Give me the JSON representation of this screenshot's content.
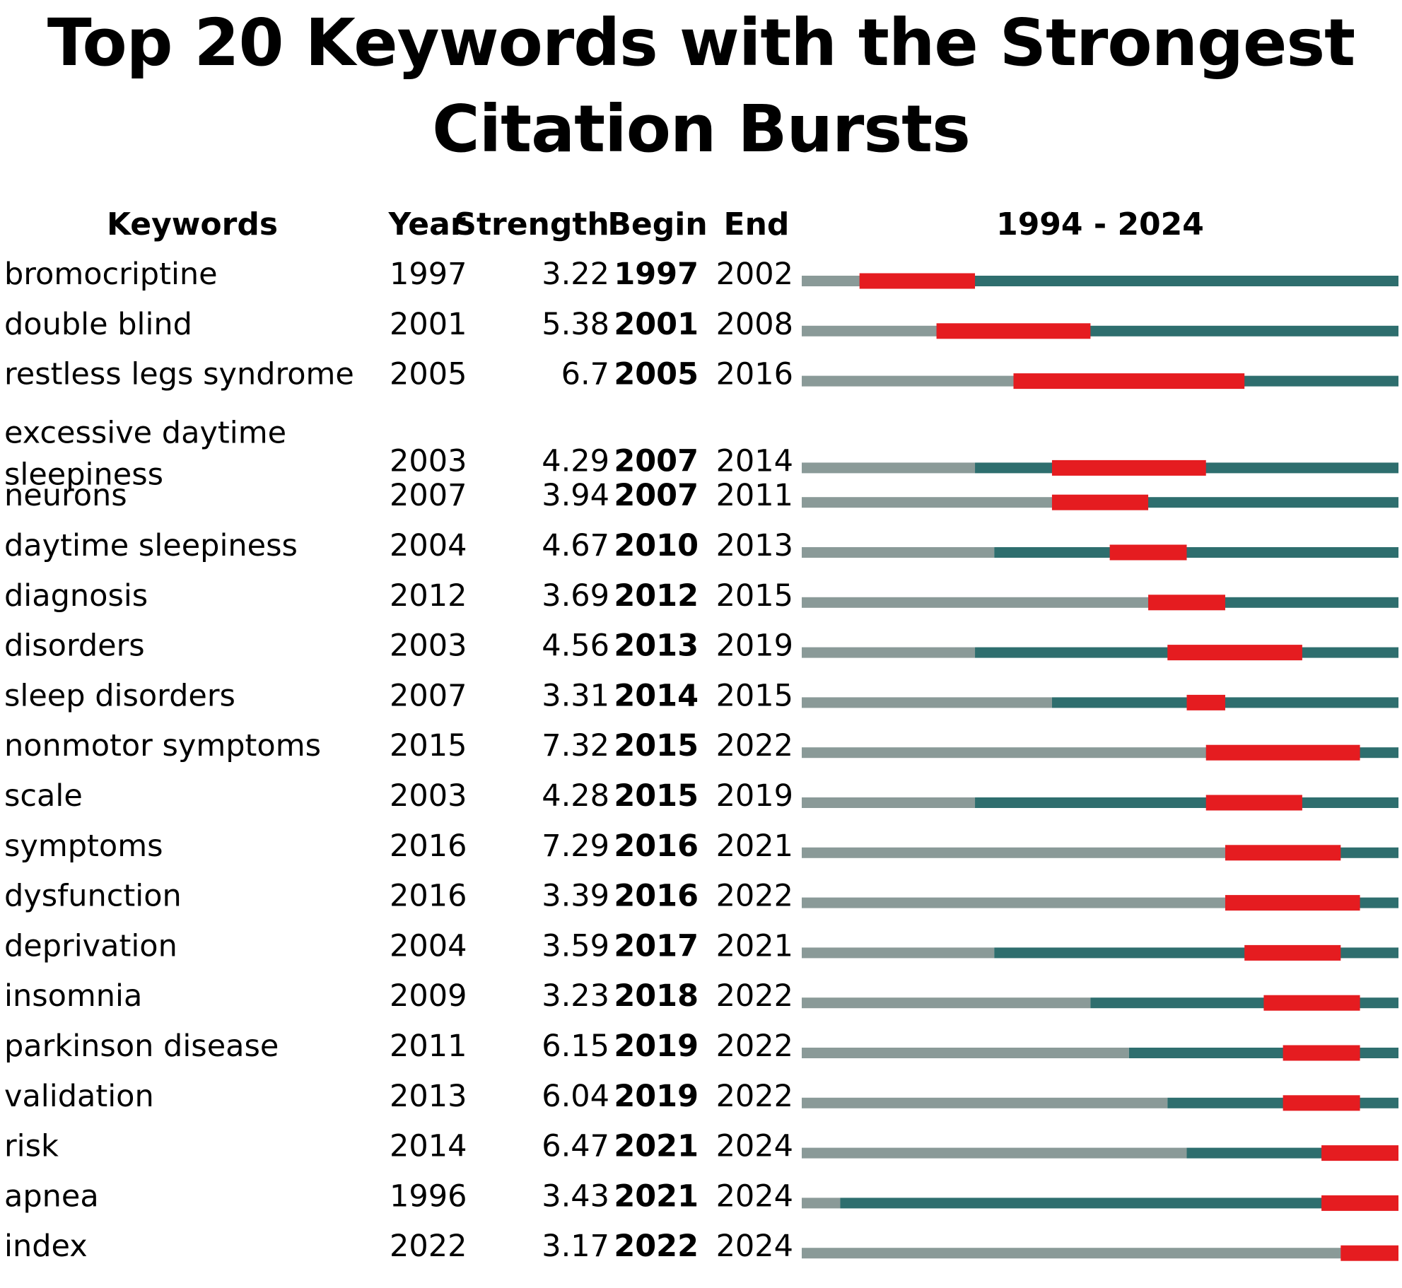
{
  "chart_data": {
    "type": "table",
    "title": "Top 20 Keywords with the Strongest Citation Bursts",
    "columns": [
      "Keywords",
      "Year",
      "Strength",
      "Begin",
      "End",
      "1994 - 2024"
    ],
    "range": [
      1994,
      2024
    ],
    "colors": {
      "before": "#8a9a98",
      "active": "#2e6e6e",
      "burst": "#e51c20"
    },
    "rows": [
      {
        "keyword": "bromocriptine",
        "year": "1997",
        "strength": "3.22",
        "begin": "1997",
        "end": "2002"
      },
      {
        "keyword": "double blind",
        "year": "2001",
        "strength": "5.38",
        "begin": "2001",
        "end": "2008"
      },
      {
        "keyword": "restless legs syndrome",
        "year": "2005",
        "strength": "6.7",
        "begin": "2005",
        "end": "2016"
      },
      {
        "keyword": "excessive daytime sleepiness",
        "lines": [
          "excessive daytime",
          "sleepiness"
        ],
        "year": "2003",
        "strength": "4.29",
        "begin": "2007",
        "end": "2014"
      },
      {
        "keyword": "neurons",
        "year": "2007",
        "strength": "3.94",
        "begin": "2007",
        "end": "2011"
      },
      {
        "keyword": "daytime sleepiness",
        "year": "2004",
        "strength": "4.67",
        "begin": "2010",
        "end": "2013"
      },
      {
        "keyword": "diagnosis",
        "year": "2012",
        "strength": "3.69",
        "begin": "2012",
        "end": "2015"
      },
      {
        "keyword": "disorders",
        "year": "2003",
        "strength": "4.56",
        "begin": "2013",
        "end": "2019"
      },
      {
        "keyword": "sleep disorders",
        "year": "2007",
        "strength": "3.31",
        "begin": "2014",
        "end": "2015"
      },
      {
        "keyword": "nonmotor symptoms",
        "year": "2015",
        "strength": "7.32",
        "begin": "2015",
        "end": "2022"
      },
      {
        "keyword": "scale",
        "year": "2003",
        "strength": "4.28",
        "begin": "2015",
        "end": "2019"
      },
      {
        "keyword": "symptoms",
        "year": "2016",
        "strength": "7.29",
        "begin": "2016",
        "end": "2021"
      },
      {
        "keyword": "dysfunction",
        "year": "2016",
        "strength": "3.39",
        "begin": "2016",
        "end": "2022"
      },
      {
        "keyword": "deprivation",
        "year": "2004",
        "strength": "3.59",
        "begin": "2017",
        "end": "2021"
      },
      {
        "keyword": "insomnia",
        "year": "2009",
        "strength": "3.23",
        "begin": "2018",
        "end": "2022"
      },
      {
        "keyword": "parkinson disease",
        "year": "2011",
        "strength": "6.15",
        "begin": "2019",
        "end": "2022"
      },
      {
        "keyword": "validation",
        "year": "2013",
        "strength": "6.04",
        "begin": "2019",
        "end": "2022"
      },
      {
        "keyword": "risk",
        "year": "2014",
        "strength": "6.47",
        "begin": "2021",
        "end": "2024"
      },
      {
        "keyword": "apnea",
        "year": "1996",
        "strength": "3.43",
        "begin": "2021",
        "end": "2024"
      },
      {
        "keyword": "index",
        "year": "2022",
        "strength": "3.17",
        "begin": "2022",
        "end": "2024"
      }
    ]
  }
}
